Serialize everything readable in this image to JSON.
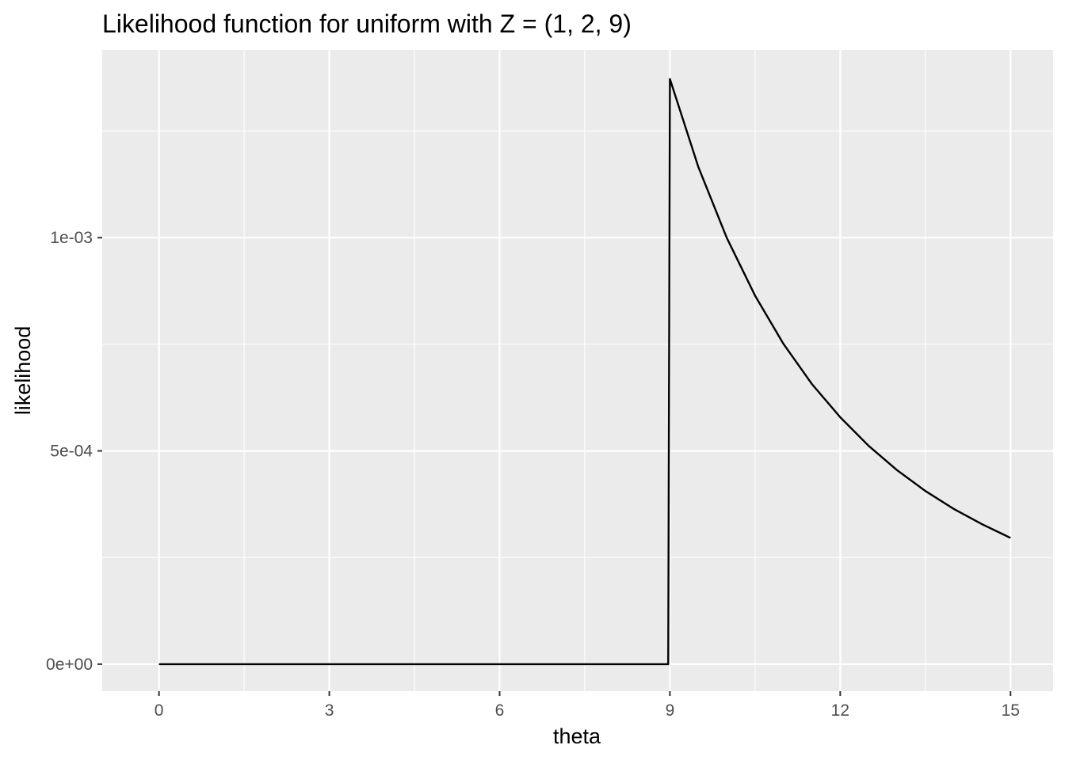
{
  "chart_data": {
    "type": "line",
    "title": "Likelihood function for uniform with Z = (1, 2, 9)",
    "xlabel": "theta",
    "ylabel": "likelihood",
    "xlim": [
      -1,
      15.75
    ],
    "ylim": [
      -6.33e-05,
      0.0014403
    ],
    "x_ticks": [
      0,
      3,
      6,
      9,
      12,
      15
    ],
    "x_tick_labels": [
      "0",
      "3",
      "6",
      "9",
      "12",
      "15"
    ],
    "y_ticks": [
      0,
      0.0005,
      0.001
    ],
    "y_tick_labels": [
      "0e+00",
      "5e-04",
      "1e-03"
    ],
    "x_minor_breaks": [
      1.5,
      4.5,
      7.5,
      10.5,
      13.5
    ],
    "y_minor_breaks": [
      0.00025,
      0.00075,
      0.00125
    ],
    "grid": true,
    "panel_background": "#EBEBEB",
    "grid_color": "#FFFFFF",
    "line_color": "#000000",
    "series": [
      {
        "name": "",
        "x": [
          0,
          1,
          2,
          3,
          4,
          5,
          6,
          7,
          8,
          8.97,
          9,
          9.5,
          10,
          10.5,
          11,
          11.5,
          12,
          12.5,
          13,
          13.5,
          14,
          14.5,
          15
        ],
        "y": [
          0,
          0,
          0,
          0,
          0,
          0,
          0,
          0,
          0,
          0,
          0.001372,
          0.001166,
          0.001,
          0.000864,
          0.000751,
          0.000657,
          0.000579,
          0.000512,
          0.000455,
          0.000406,
          0.000364,
          0.000328,
          0.000296
        ]
      }
    ]
  }
}
